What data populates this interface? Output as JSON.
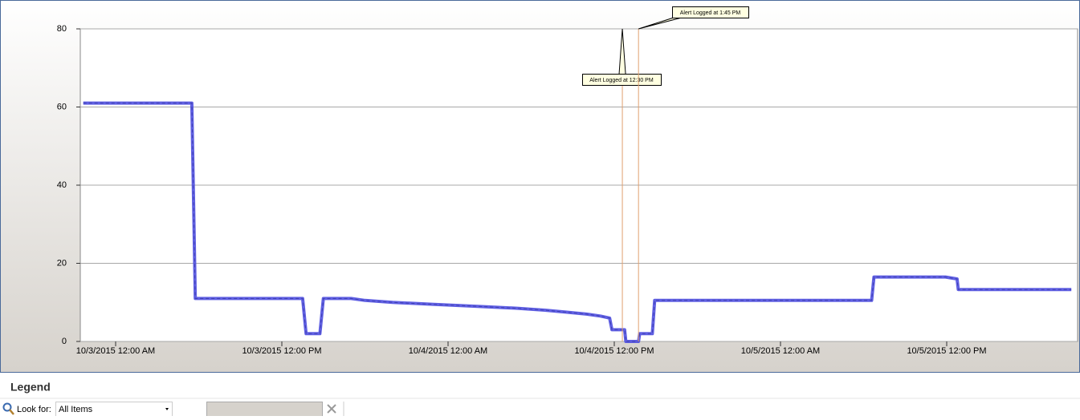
{
  "chart_data": {
    "type": "line",
    "x": [
      "2015-10-02T21:40",
      "2015-10-03T05:30",
      "2015-10-03T05:45",
      "2015-10-03T13:30",
      "2015-10-03T13:45",
      "2015-10-03T14:45",
      "2015-10-03T15:00",
      "2015-10-03T17:00",
      "2015-10-03T18:00",
      "2015-10-03T20:00",
      "2015-10-03T23:00",
      "2015-10-04T02:00",
      "2015-10-04T05:00",
      "2015-10-04T07:00",
      "2015-10-04T08:30",
      "2015-10-04T10:00",
      "2015-10-04T11:00",
      "2015-10-04T11:40",
      "2015-10-04T11:50",
      "2015-10-04T12:45",
      "2015-10-04T12:50",
      "2015-10-04T13:45",
      "2015-10-04T13:50",
      "2015-10-04T14:45",
      "2015-10-04T14:55",
      "2015-10-05T06:35",
      "2015-10-05T06:45",
      "2015-10-05T11:55",
      "2015-10-05T12:45",
      "2015-10-05T12:50",
      "2015-10-05T21:00"
    ],
    "series": [
      {
        "color": "#4f4fe0",
        "values": [
          61,
          61,
          11,
          11,
          2,
          2,
          11,
          11,
          10.5,
          10,
          9.5,
          9,
          8.5,
          8,
          7.5,
          7,
          6.5,
          6,
          3,
          3,
          0,
          0,
          2,
          2,
          10.5,
          10.5,
          16.5,
          16.5,
          16,
          13.3,
          13.3
        ]
      }
    ],
    "xlim": [
      "2015-10-02T21:27",
      "2015-10-05T21:27"
    ],
    "xticks": [
      {
        "value": "2015-10-03T00:00",
        "label": "10/3/2015 12:00 AM"
      },
      {
        "value": "2015-10-03T12:00",
        "label": "10/3/2015 12:00 PM"
      },
      {
        "value": "2015-10-04T00:00",
        "label": "10/4/2015 12:00 AM"
      },
      {
        "value": "2015-10-04T12:00",
        "label": "10/4/2015 12:00 PM"
      },
      {
        "value": "2015-10-05T00:00",
        "label": "10/5/2015 12:00 AM"
      },
      {
        "value": "2015-10-05T12:00",
        "label": "10/5/2015 12:00 PM"
      }
    ],
    "ylim": [
      0,
      80
    ],
    "yticks": [
      0,
      20,
      40,
      60,
      80
    ],
    "grid": true,
    "annotations": [
      {
        "x": "2015-10-04T12:35",
        "text": "Alert Logged at 12:30 PM"
      },
      {
        "x": "2015-10-04T13:45",
        "text": "Alert Logged at 1:45 PM"
      }
    ]
  },
  "legend_panel": {
    "title": "Legend",
    "look_for_label": "Look for:",
    "filter_value": "All Items"
  }
}
